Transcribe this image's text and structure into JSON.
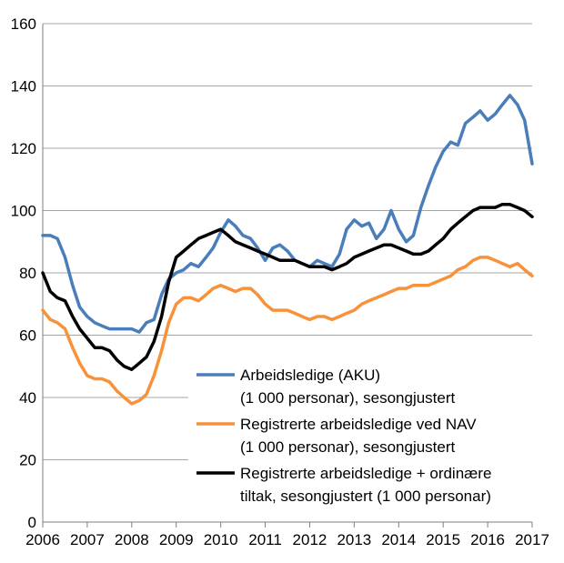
{
  "chart_data": {
    "type": "line",
    "title": "",
    "xlabel": "",
    "ylabel": "",
    "xlim": [
      2006,
      2017
    ],
    "ylim": [
      0,
      160
    ],
    "yticks": [
      0,
      20,
      40,
      60,
      80,
      100,
      120,
      140,
      160
    ],
    "xticks": [
      "2006",
      "2007",
      "2008",
      "2009",
      "2010",
      "2011",
      "2012",
      "2013",
      "2014",
      "2015",
      "2016",
      "2017"
    ],
    "grid": "horizontal",
    "legend_position": "bottom-right",
    "series": [
      {
        "name": "Arbeidsledige (AKU) (1 000 personar), sesongjustert",
        "legend_lines": [
          "Arbeidsledige (AKU)",
          "(1 000 personar), sesongjustert"
        ],
        "color": "#4a7ebb",
        "x": [
          2006.0,
          2006.17,
          2006.33,
          2006.5,
          2006.67,
          2006.83,
          2007.0,
          2007.17,
          2007.33,
          2007.5,
          2007.67,
          2007.83,
          2008.0,
          2008.17,
          2008.33,
          2008.5,
          2008.67,
          2008.83,
          2009.0,
          2009.17,
          2009.33,
          2009.5,
          2009.67,
          2009.83,
          2010.0,
          2010.17,
          2010.33,
          2010.5,
          2010.67,
          2010.83,
          2011.0,
          2011.17,
          2011.33,
          2011.5,
          2011.67,
          2011.83,
          2012.0,
          2012.17,
          2012.33,
          2012.5,
          2012.67,
          2012.83,
          2013.0,
          2013.17,
          2013.33,
          2013.5,
          2013.67,
          2013.83,
          2014.0,
          2014.17,
          2014.33,
          2014.5,
          2014.67,
          2014.83,
          2015.0,
          2015.17,
          2015.33,
          2015.5,
          2015.67,
          2015.83,
          2016.0,
          2016.17,
          2016.33,
          2016.5,
          2016.67,
          2016.83,
          2017.0
        ],
        "y": [
          92,
          92,
          91,
          85,
          76,
          69,
          66,
          64,
          63,
          62,
          62,
          62,
          62,
          61,
          64,
          65,
          73,
          78,
          80,
          81,
          83,
          82,
          85,
          88,
          93,
          97,
          95,
          92,
          91,
          88,
          84,
          88,
          89,
          87,
          84,
          83,
          82,
          84,
          83,
          82,
          86,
          94,
          97,
          95,
          96,
          91,
          94,
          100,
          94,
          90,
          92,
          101,
          108,
          114,
          119,
          122,
          121,
          128,
          130,
          132,
          129,
          131,
          134,
          137,
          134,
          129,
          115
        ]
      },
      {
        "name": "Registrerte arbeidsledige ved NAV (1 000 personar), sesongjustert",
        "legend_lines": [
          "Registrerte arbeidsledige ved NAV",
          "(1 000 personar), sesongjustert"
        ],
        "color": "#f7923a",
        "x": [
          2006.0,
          2006.17,
          2006.33,
          2006.5,
          2006.67,
          2006.83,
          2007.0,
          2007.17,
          2007.33,
          2007.5,
          2007.67,
          2007.83,
          2008.0,
          2008.17,
          2008.33,
          2008.5,
          2008.67,
          2008.83,
          2009.0,
          2009.17,
          2009.33,
          2009.5,
          2009.67,
          2009.83,
          2010.0,
          2010.17,
          2010.33,
          2010.5,
          2010.67,
          2010.83,
          2011.0,
          2011.17,
          2011.33,
          2011.5,
          2011.67,
          2011.83,
          2012.0,
          2012.17,
          2012.33,
          2012.5,
          2012.67,
          2012.83,
          2013.0,
          2013.17,
          2013.33,
          2013.5,
          2013.67,
          2013.83,
          2014.0,
          2014.17,
          2014.33,
          2014.5,
          2014.67,
          2014.83,
          2015.0,
          2015.17,
          2015.33,
          2015.5,
          2015.67,
          2015.83,
          2016.0,
          2016.17,
          2016.33,
          2016.5,
          2016.67,
          2016.83,
          2017.0
        ],
        "y": [
          68,
          65,
          64,
          62,
          56,
          51,
          47,
          46,
          46,
          45,
          42,
          40,
          38,
          39,
          41,
          47,
          55,
          64,
          70,
          72,
          72,
          71,
          73,
          75,
          76,
          75,
          74,
          75,
          75,
          73,
          70,
          68,
          68,
          68,
          67,
          66,
          65,
          66,
          66,
          65,
          66,
          67,
          68,
          70,
          71,
          72,
          73,
          74,
          75,
          75,
          76,
          76,
          76,
          77,
          78,
          79,
          81,
          82,
          84,
          85,
          85,
          84,
          83,
          82,
          83,
          81,
          79
        ]
      },
      {
        "name": "Registrerte arbeidsledige + ordinære tiltak, sesongjustert (1 000 personar)",
        "legend_lines": [
          "Registrerte arbeidsledige + ordinære",
          "tiltak, sesongjustert (1 000 personar)"
        ],
        "color": "#000000",
        "x": [
          2006.0,
          2006.17,
          2006.33,
          2006.5,
          2006.67,
          2006.83,
          2007.0,
          2007.17,
          2007.33,
          2007.5,
          2007.67,
          2007.83,
          2008.0,
          2008.17,
          2008.33,
          2008.5,
          2008.67,
          2008.83,
          2009.0,
          2009.17,
          2009.33,
          2009.5,
          2009.67,
          2009.83,
          2010.0,
          2010.17,
          2010.33,
          2010.5,
          2010.67,
          2010.83,
          2011.0,
          2011.17,
          2011.33,
          2011.5,
          2011.67,
          2011.83,
          2012.0,
          2012.17,
          2012.33,
          2012.5,
          2012.67,
          2012.83,
          2013.0,
          2013.17,
          2013.33,
          2013.5,
          2013.67,
          2013.83,
          2014.0,
          2014.17,
          2014.33,
          2014.5,
          2014.67,
          2014.83,
          2015.0,
          2015.17,
          2015.33,
          2015.5,
          2015.67,
          2015.83,
          2016.0,
          2016.17,
          2016.33,
          2016.5,
          2016.67,
          2016.83,
          2017.0
        ],
        "y": [
          80,
          74,
          72,
          71,
          66,
          62,
          59,
          56,
          56,
          55,
          52,
          50,
          49,
          51,
          53,
          58,
          66,
          77,
          85,
          87,
          89,
          91,
          92,
          93,
          94,
          92,
          90,
          89,
          88,
          87,
          86,
          85,
          84,
          84,
          84,
          83,
          82,
          82,
          82,
          81,
          82,
          83,
          85,
          86,
          87,
          88,
          89,
          89,
          88,
          87,
          86,
          86,
          87,
          89,
          91,
          94,
          96,
          98,
          100,
          101,
          101,
          101,
          102,
          102,
          101,
          100,
          98
        ]
      }
    ]
  }
}
